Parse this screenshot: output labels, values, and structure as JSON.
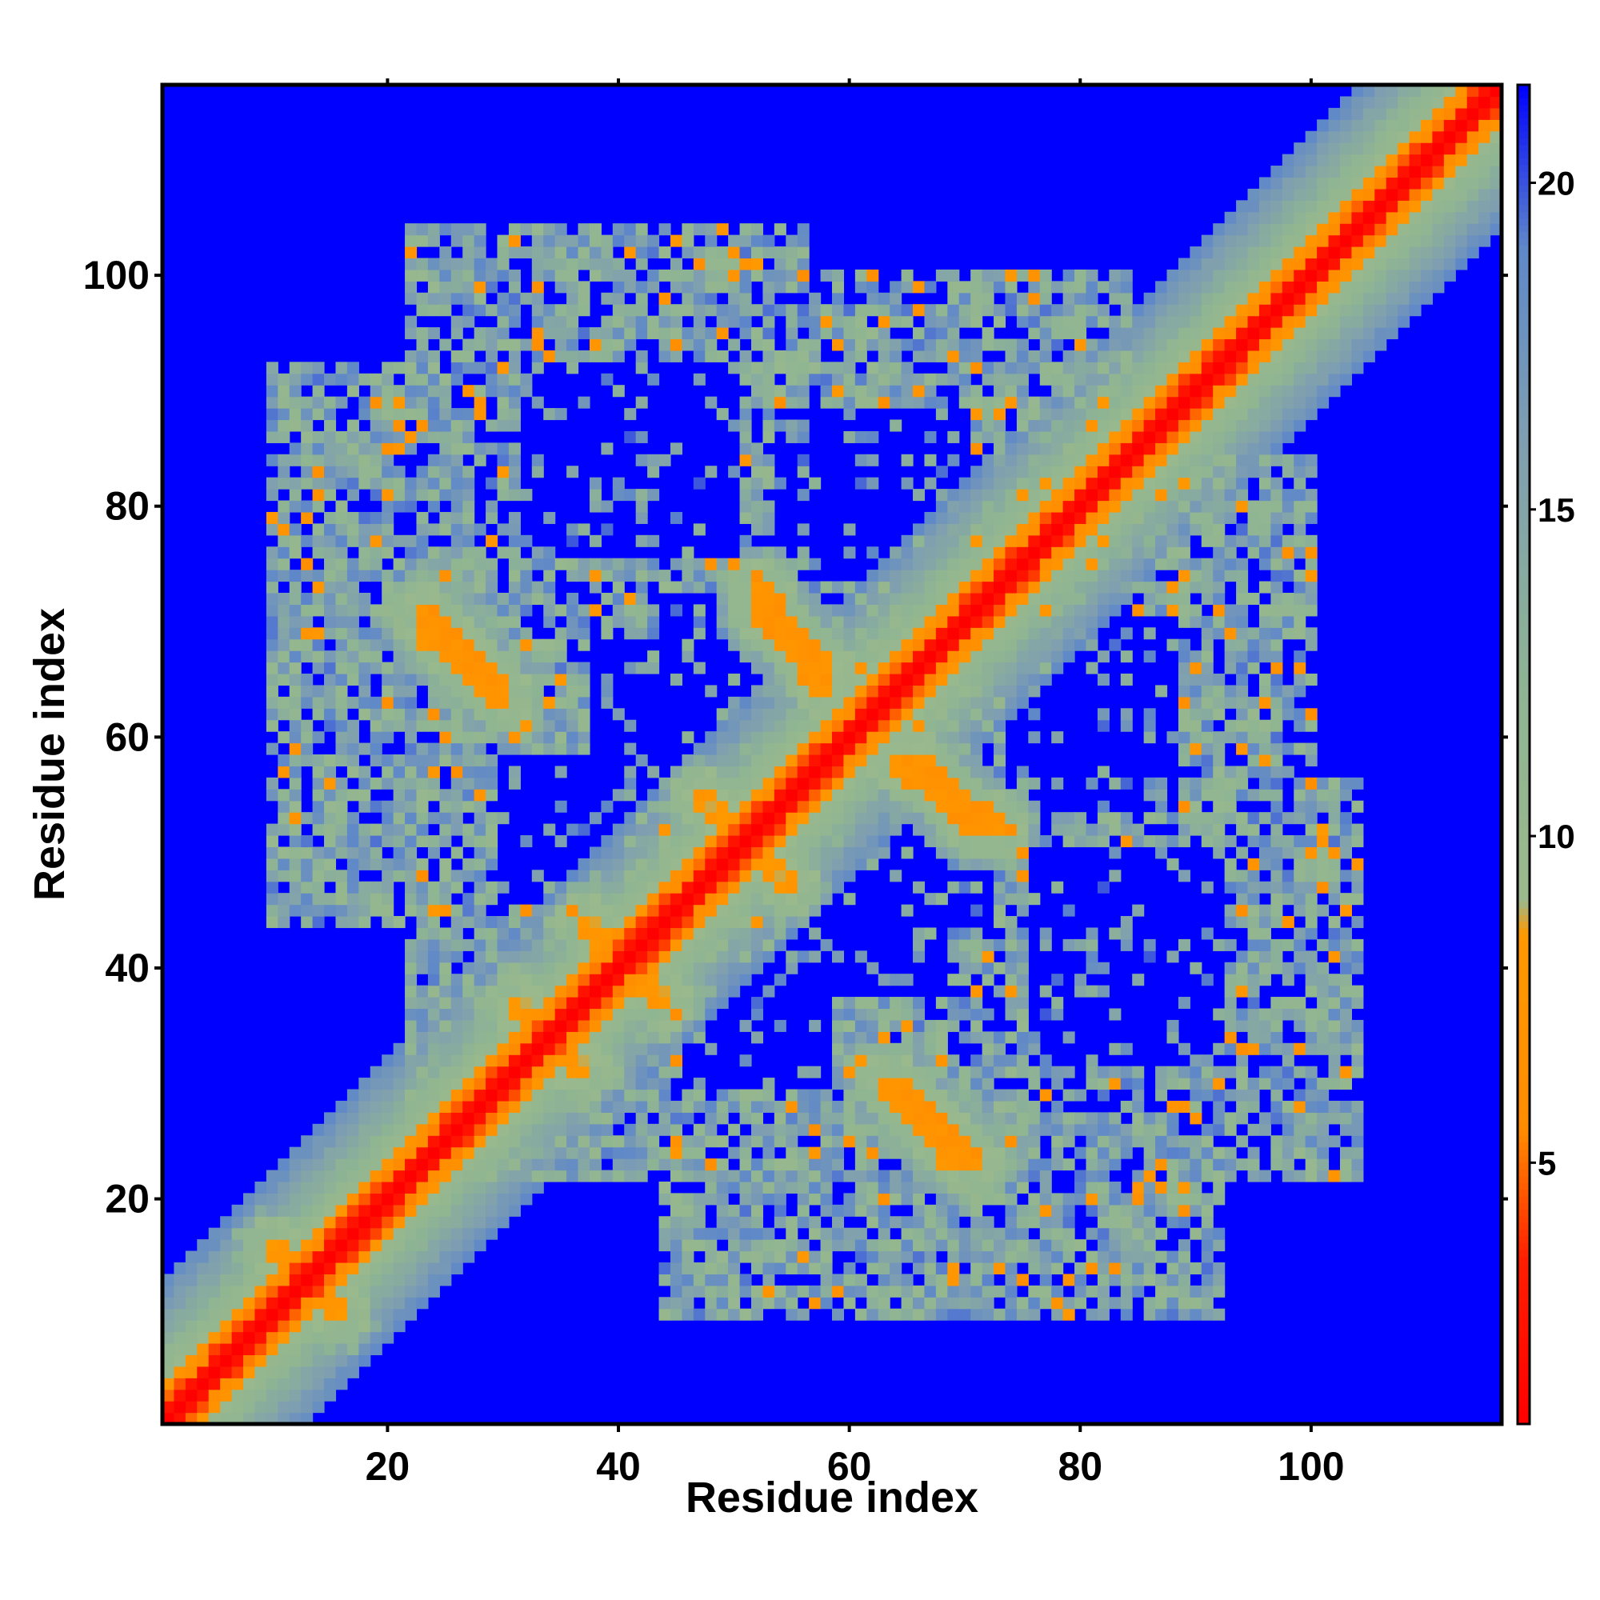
{
  "chart_data": {
    "type": "heatmap",
    "title": "",
    "xlabel": "Residue index",
    "ylabel": "Residue index",
    "n_residues": 116,
    "xlim": [
      1,
      116
    ],
    "ylim": [
      1,
      116
    ],
    "x_ticks": [
      20,
      40,
      60,
      80,
      100
    ],
    "y_ticks": [
      20,
      40,
      60,
      80,
      100
    ],
    "colorbar": {
      "range": [
        1,
        21.5
      ],
      "ticks": [
        5,
        10,
        15,
        20
      ],
      "position": "right",
      "stops": [
        {
          "value": 1,
          "color": "#ff0000"
        },
        {
          "value": 3.5,
          "color": "#ff1e00"
        },
        {
          "value": 5.5,
          "color": "#ff8c00"
        },
        {
          "value": 8.5,
          "color": "#ff9900"
        },
        {
          "value": 9.0,
          "color": "#9bb98c"
        },
        {
          "value": 12,
          "color": "#8fb592"
        },
        {
          "value": 16,
          "color": "#7f9fb0"
        },
        {
          "value": 19,
          "color": "#5f88c8"
        },
        {
          "value": 21.5,
          "color": "#0000ff"
        }
      ]
    },
    "background_value": 21.5,
    "diagonal_band": {
      "value_on_diagonal": 1,
      "offset_1": 4,
      "offset_2": 6.5,
      "falloff_width": 12
    },
    "contact_clusters": [
      {
        "name": "hairpin-1",
        "from": [
          23,
          71
        ],
        "to": [
          30,
          64
        ],
        "value": 6
      },
      {
        "name": "hairpin-2",
        "from": [
          52,
          73
        ],
        "to": [
          58,
          66
        ],
        "value": 6
      },
      {
        "name": "hairpin-3",
        "from": [
          64,
          58
        ],
        "to": [
          71,
          52
        ],
        "value": 6
      },
      {
        "name": "hairpin-4",
        "from": [
          63,
          30
        ],
        "to": [
          70,
          23
        ],
        "value": 6
      },
      {
        "name": "strand-pair-1",
        "from": [
          10,
          16
        ],
        "to": [
          16,
          10
        ],
        "value": 7
      },
      {
        "name": "strand-pair-2",
        "from": [
          31,
          37
        ],
        "to": [
          37,
          31
        ],
        "value": 7
      },
      {
        "name": "strand-pair-3",
        "from": [
          37,
          44
        ],
        "to": [
          44,
          37
        ],
        "value": 7
      },
      {
        "name": "strand-pair-4",
        "from": [
          47,
          55
        ],
        "to": [
          55,
          47
        ],
        "value": 7
      }
    ],
    "contact_regions": [
      {
        "x": [
          26,
          56
        ],
        "y": [
          74,
          104
        ]
      },
      {
        "x": [
          50,
          84
        ],
        "y": [
          52,
          100
        ]
      },
      {
        "x": [
          10,
          44
        ],
        "y": [
          50,
          82
        ]
      },
      {
        "x": [
          28,
          58
        ],
        "y": [
          22,
          62
        ]
      },
      {
        "x": [
          44,
          72
        ],
        "y": [
          10,
          40
        ]
      },
      {
        "x": [
          64,
          100
        ],
        "y": [
          24,
          66
        ]
      },
      {
        "x": [
          82,
          104
        ],
        "y": [
          22,
          44
        ]
      },
      {
        "x": [
          70,
          92
        ],
        "y": [
          10,
          30
        ]
      },
      {
        "x": [
          36,
          60
        ],
        "y": [
          30,
          58
        ]
      }
    ],
    "interior_holes": [
      {
        "x": [
          32,
          50
        ],
        "y": [
          76,
          92
        ]
      },
      {
        "x": [
          38,
          50
        ],
        "y": [
          54,
          68
        ]
      },
      {
        "x": [
          56,
          72
        ],
        "y": [
          44,
          60
        ]
      },
      {
        "x": [
          74,
          88
        ],
        "y": [
          54,
          66
        ]
      },
      {
        "x": [
          76,
          90
        ],
        "y": [
          32,
          46
        ]
      },
      {
        "x": [
          58,
          70
        ],
        "y": [
          76,
          88
        ]
      },
      {
        "x": [
          46,
          58
        ],
        "y": [
          30,
          40
        ]
      }
    ]
  }
}
